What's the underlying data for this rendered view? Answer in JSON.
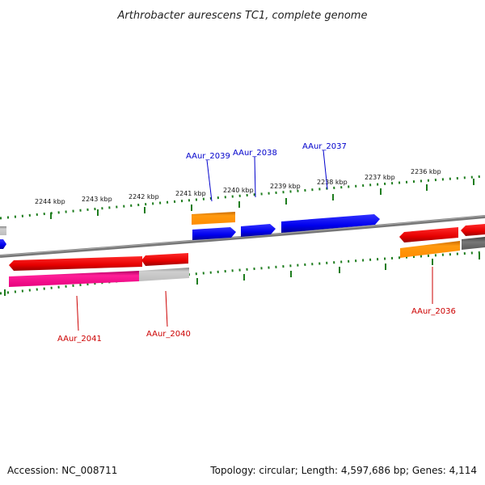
{
  "title": "Arthrobacter aurescens TC1, complete genome",
  "footer": {
    "accession": "Accession: NC_008711",
    "topology": "Topology: circular; Length: 4,597,686 bp; Genes: 4,114"
  },
  "colors": {
    "tick": "#1e7d1e",
    "backbone": "#777777",
    "forward_cds": "#0a0aee",
    "reverse_cds": "#e60000",
    "orange_feature": "#ff8c00",
    "magenta_feature": "#e6007e",
    "gray_feature": "#b8b8b8",
    "dark_gray_feature": "#666666",
    "label_forward": "#0000cc",
    "label_reverse": "#cc0000"
  },
  "ticks": [
    "2244 kbp",
    "2243 kbp",
    "2242 kbp",
    "2241 kbp",
    "2240 kbp",
    "2239 kbp",
    "2238 kbp",
    "2237 kbp",
    "2236 kbp"
  ],
  "gene_labels": [
    {
      "name": "AAur_2039",
      "strand": "forward"
    },
    {
      "name": "AAur_2038",
      "strand": "forward"
    },
    {
      "name": "AAur_2037",
      "strand": "forward"
    },
    {
      "name": "AAur_2041",
      "strand": "reverse"
    },
    {
      "name": "AAur_2040",
      "strand": "reverse"
    },
    {
      "name": "AAur_2036",
      "strand": "reverse"
    }
  ]
}
